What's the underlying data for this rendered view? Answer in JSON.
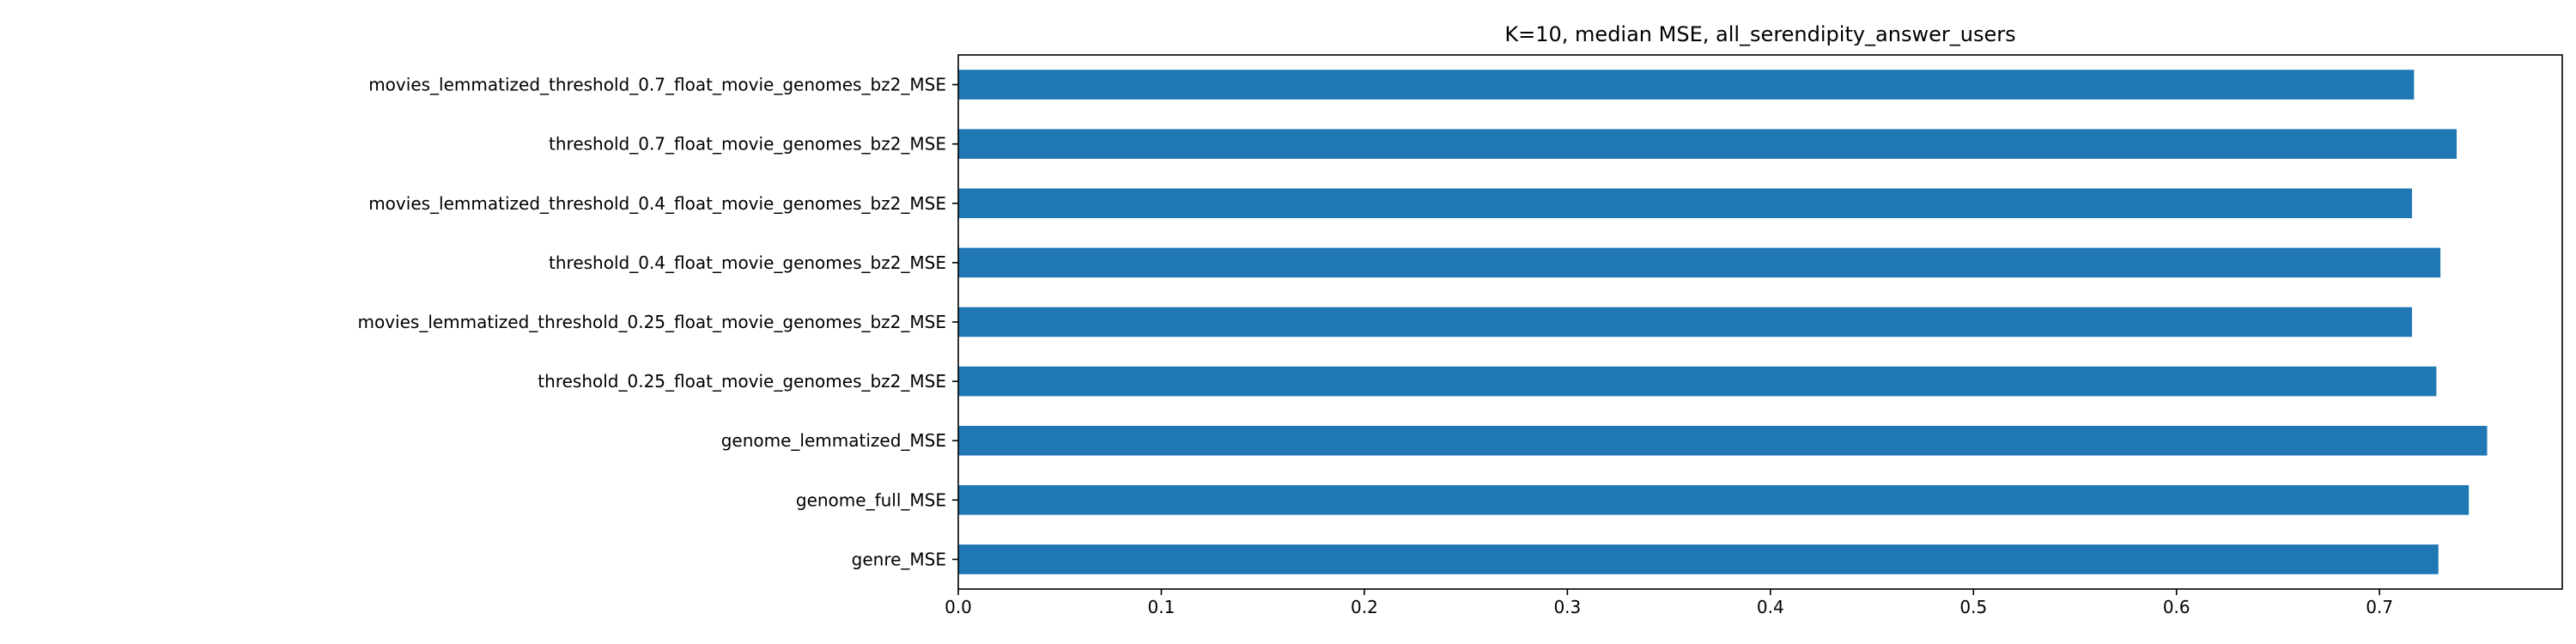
{
  "chart_data": {
    "type": "bar",
    "orientation": "horizontal",
    "title": "K=10, median MSE, all_serendipity_answer_users",
    "xlabel": "",
    "ylabel": "",
    "xlim": [
      0.0,
      0.79
    ],
    "xticks": [
      "0.0",
      "0.1",
      "0.2",
      "0.3",
      "0.4",
      "0.5",
      "0.6",
      "0.7"
    ],
    "grid": false,
    "legend": "none",
    "bar_color": "#1f77b4",
    "categories": [
      "genre_MSE",
      "genome_full_MSE",
      "genome_lemmatized_MSE",
      "threshold_0.25_float_movie_genomes_bz2_MSE",
      "movies_lemmatized_threshold_0.25_float_movie_genomes_bz2_MSE",
      "threshold_0.4_float_movie_genomes_bz2_MSE",
      "movies_lemmatized_threshold_0.4_float_movie_genomes_bz2_MSE",
      "threshold_0.7_float_movie_genomes_bz2_MSE",
      "movies_lemmatized_threshold_0.7_float_movie_genomes_bz2_MSE"
    ],
    "values": [
      0.729,
      0.744,
      0.753,
      0.728,
      0.716,
      0.73,
      0.716,
      0.738,
      0.717
    ]
  }
}
